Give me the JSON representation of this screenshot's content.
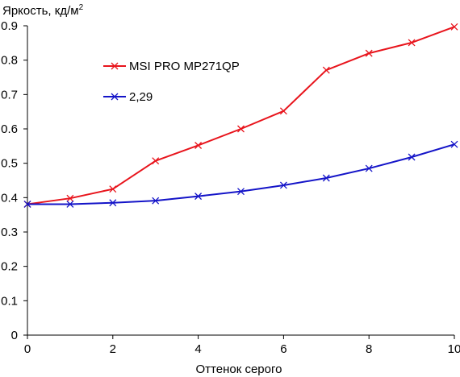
{
  "chart_data": {
    "type": "line",
    "title": "",
    "ylabel": "Яркость, кд/м",
    "ylabel_sup": "2",
    "xlabel": "Оттенок серого",
    "xlim": [
      0,
      10
    ],
    "ylim": [
      0,
      0.9
    ],
    "x_ticks": [
      "0",
      "2",
      "4",
      "6",
      "8",
      "10"
    ],
    "y_ticks": [
      "0",
      "0.1",
      "0.2",
      "0.3",
      "0.4",
      "0.5",
      "0.6",
      "0.7",
      "0.8",
      "0.9"
    ],
    "grid": false,
    "legend_position": "top-left",
    "x": [
      0,
      1,
      2,
      3,
      4,
      5,
      6,
      7,
      8,
      9,
      10
    ],
    "series": [
      {
        "name": "MSI PRO MP271QP",
        "color": "#e8141c",
        "marker": "x",
        "values": [
          0.381,
          0.398,
          0.425,
          0.507,
          0.552,
          0.6,
          0.652,
          0.771,
          0.82,
          0.851,
          0.897
        ]
      },
      {
        "name": "2,29",
        "color": "#1414c8",
        "marker": "x",
        "values": [
          0.381,
          0.381,
          0.385,
          0.391,
          0.404,
          0.418,
          0.436,
          0.457,
          0.485,
          0.518,
          0.555
        ]
      }
    ]
  }
}
